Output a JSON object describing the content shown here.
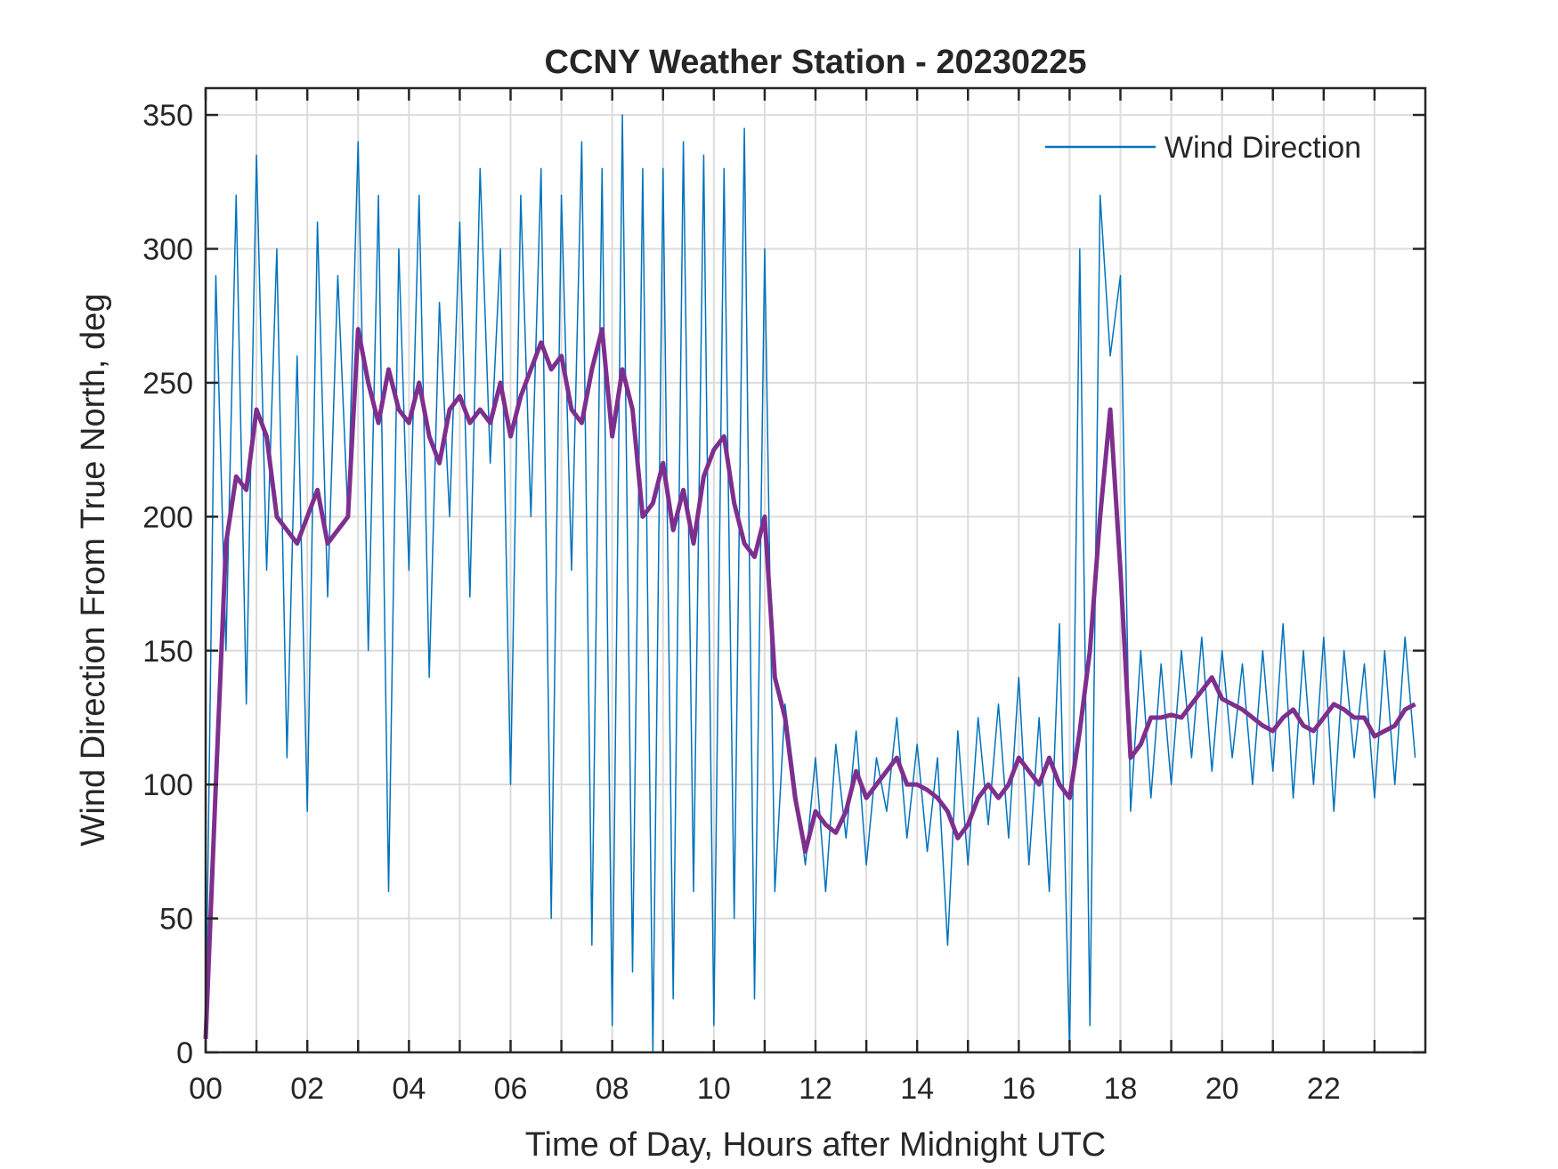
{
  "chart_data": {
    "type": "line",
    "title": "CCNY Weather Station - 20230225",
    "xlabel": "Time of Day, Hours after Midnight UTC",
    "ylabel": "Wind Direction From True North, deg",
    "xlim": [
      0,
      24
    ],
    "ylim": [
      0,
      360
    ],
    "xticks": [
      {
        "value": 0,
        "label": "00"
      },
      {
        "value": 2,
        "label": "02"
      },
      {
        "value": 4,
        "label": "04"
      },
      {
        "value": 6,
        "label": "06"
      },
      {
        "value": 8,
        "label": "08"
      },
      {
        "value": 10,
        "label": "10"
      },
      {
        "value": 12,
        "label": "12"
      },
      {
        "value": 14,
        "label": "14"
      },
      {
        "value": 16,
        "label": "16"
      },
      {
        "value": 18,
        "label": "18"
      },
      {
        "value": 20,
        "label": "20"
      },
      {
        "value": 22,
        "label": "22"
      }
    ],
    "xminorticks": [
      1,
      3,
      5,
      7,
      9,
      11,
      13,
      15,
      17,
      19,
      21,
      23
    ],
    "yticks": [
      0,
      50,
      100,
      150,
      200,
      250,
      300,
      350
    ],
    "grid": true,
    "legend": "northeast",
    "x": [
      0,
      0.2,
      0.4,
      0.6,
      0.8,
      1,
      1.2,
      1.4,
      1.6,
      1.8,
      2,
      2.2,
      2.4,
      2.6,
      2.8,
      3,
      3.2,
      3.4,
      3.6,
      3.8,
      4,
      4.2,
      4.4,
      4.6,
      4.8,
      5,
      5.2,
      5.4,
      5.6,
      5.8,
      6,
      6.2,
      6.4,
      6.6,
      6.8,
      7,
      7.2,
      7.4,
      7.6,
      7.8,
      8,
      8.2,
      8.4,
      8.6,
      8.8,
      9,
      9.2,
      9.4,
      9.6,
      9.8,
      10,
      10.2,
      10.4,
      10.6,
      10.8,
      11,
      11.2,
      11.4,
      11.6,
      11.8,
      12,
      12.2,
      12.4,
      12.6,
      12.8,
      13,
      13.2,
      13.4,
      13.6,
      13.8,
      14,
      14.2,
      14.4,
      14.6,
      14.8,
      15,
      15.2,
      15.4,
      15.6,
      15.8,
      16,
      16.2,
      16.4,
      16.6,
      16.8,
      17,
      17.2,
      17.4,
      17.6,
      17.8,
      18,
      18.2,
      18.4,
      18.6,
      18.8,
      19,
      19.2,
      19.4,
      19.6,
      19.8,
      20,
      20.2,
      20.4,
      20.6,
      20.8,
      21,
      21.2,
      21.4,
      21.6,
      21.8,
      22,
      22.2,
      22.4,
      22.6,
      22.8,
      23,
      23.2,
      23.4,
      23.6,
      23.8
    ],
    "series": [
      {
        "name": "Wind Direction",
        "color": "#0072bd",
        "width": 1.5,
        "legend": true,
        "values": [
          5,
          290,
          150,
          320,
          130,
          335,
          180,
          300,
          110,
          260,
          90,
          310,
          170,
          290,
          200,
          340,
          150,
          320,
          60,
          300,
          180,
          320,
          140,
          280,
          200,
          310,
          170,
          330,
          220,
          300,
          100,
          320,
          200,
          330,
          50,
          320,
          180,
          340,
          40,
          330,
          10,
          350,
          30,
          330,
          0,
          330,
          20,
          340,
          60,
          335,
          10,
          330,
          50,
          345,
          20,
          300,
          60,
          130,
          100,
          70,
          110,
          60,
          115,
          80,
          120,
          70,
          110,
          90,
          125,
          80,
          115,
          75,
          110,
          40,
          120,
          70,
          125,
          85,
          130,
          80,
          140,
          70,
          125,
          60,
          160,
          0,
          300,
          10,
          320,
          260,
          290,
          90,
          150,
          95,
          145,
          100,
          150,
          110,
          155,
          105,
          150,
          110,
          145,
          100,
          150,
          105,
          160,
          95,
          150,
          100,
          155,
          90,
          150,
          110,
          145,
          95,
          150,
          100,
          155,
          110
        ]
      },
      {
        "color": "#7e2f8e",
        "width": 5,
        "legend": false,
        "values": [
          5,
          100,
          190,
          215,
          210,
          240,
          230,
          200,
          195,
          190,
          200,
          210,
          190,
          195,
          200,
          270,
          250,
          235,
          255,
          240,
          235,
          250,
          230,
          220,
          240,
          245,
          235,
          240,
          235,
          250,
          230,
          245,
          255,
          265,
          255,
          260,
          240,
          235,
          255,
          270,
          230,
          255,
          240,
          200,
          205,
          220,
          195,
          210,
          190,
          215,
          225,
          230,
          205,
          190,
          185,
          200,
          140,
          125,
          95,
          75,
          90,
          85,
          82,
          90,
          105,
          95,
          100,
          105,
          110,
          100,
          100,
          98,
          95,
          90,
          80,
          85,
          95,
          100,
          95,
          100,
          110,
          105,
          100,
          110,
          100,
          95,
          120,
          150,
          200,
          240,
          180,
          110,
          115,
          125,
          125,
          126,
          125,
          130,
          135,
          140,
          132,
          130,
          128,
          125,
          122,
          120,
          125,
          128,
          122,
          120,
          125,
          130,
          128,
          125,
          125,
          118,
          120,
          122,
          128,
          130
        ]
      }
    ]
  }
}
